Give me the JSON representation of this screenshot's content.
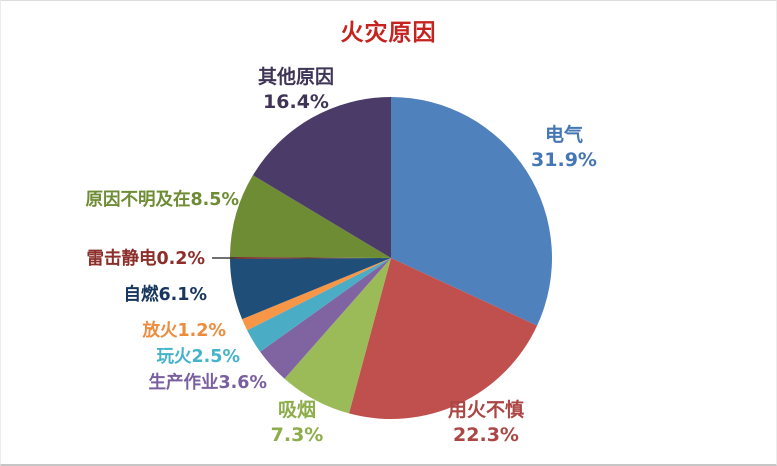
{
  "chart_data": {
    "type": "pie",
    "title": "火灾原因",
    "title_color": "#c5231f",
    "legend_position": "none",
    "labels_show": "category name + percentage around pie",
    "segments": [
      {
        "label": "电气",
        "value": 31.9,
        "pct_text": "31.9%",
        "slice_color": "#4f81bd",
        "label_color": "#4576b5"
      },
      {
        "label": "用火不慎",
        "value": 22.3,
        "pct_text": "22.3%",
        "slice_color": "#c0504d",
        "label_color": "#ab4644"
      },
      {
        "label": "吸烟",
        "value": 7.3,
        "pct_text": "7.3%",
        "slice_color": "#9bbb59",
        "label_color": "#8dad4a"
      },
      {
        "label": "生产作业",
        "value": 3.6,
        "pct_text": "3.6%",
        "slice_color": "#8064a2",
        "label_color": "#7a5fa0"
      },
      {
        "label": "玩火",
        "value": 2.5,
        "pct_text": "2.5%",
        "slice_color": "#4bacc6",
        "label_color": "#45b3c9"
      },
      {
        "label": "放火",
        "value": 1.2,
        "pct_text": "1.2%",
        "slice_color": "#f79646",
        "label_color": "#ec8c3e"
      },
      {
        "label": "自燃",
        "value": 6.1,
        "pct_text": "6.1%",
        "slice_color": "#1f4e79",
        "label_color": "#17365d"
      },
      {
        "label": "雷击静电",
        "value": 0.2,
        "pct_text": "0.2%",
        "slice_color": "#772c2a",
        "label_color": "#8c2e2a"
      },
      {
        "label": "原因不明及在",
        "value": 8.5,
        "pct_text": "8.5%",
        "slice_color": "#6d8c33",
        "label_color": "#6d8c33"
      },
      {
        "label": "其他原因",
        "value": 16.4,
        "pct_text": "16.4%",
        "slice_color": "#4a3b68",
        "label_color": "#3f3456"
      }
    ]
  }
}
